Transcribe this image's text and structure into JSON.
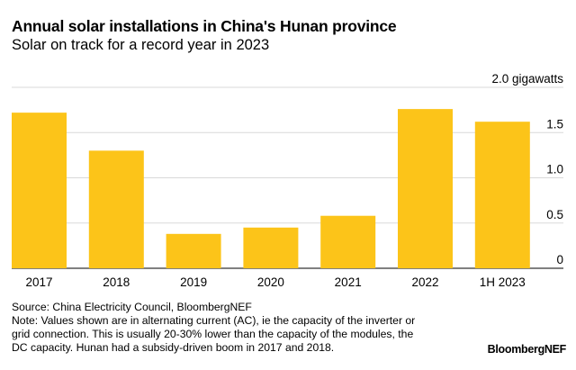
{
  "title": "Annual solar installations in China's Hunan province",
  "subtitle": "Solar on track for a record year in 2023",
  "chart_data": {
    "type": "bar",
    "title": "Annual solar installations in China's Hunan province",
    "subtitle": "Solar on track for a record year in 2023",
    "categories": [
      "2017",
      "2018",
      "2019",
      "2020",
      "2021",
      "2022",
      "1H 2023"
    ],
    "values": [
      1.72,
      1.3,
      0.38,
      0.45,
      0.58,
      1.76,
      1.62
    ],
    "ylabel": "gigawatts",
    "ylim": [
      0,
      2.0
    ],
    "yticks": [
      0,
      0.5,
      1.0,
      1.5,
      2.0
    ],
    "ytick_labels": [
      "0",
      "0.5",
      "1.0",
      "1.5",
      "2.0 gigawatts"
    ],
    "y_axis_position": "right",
    "grid": true,
    "bar_color": "#fcc419"
  },
  "footer": {
    "source": "Source: China Electricity Council, BloombergNEF",
    "note_lines": [
      "Note: Values shown are in alternating current (AC), ie the capacity of the inverter or",
      "grid connection. This is usually 20-30% lower than the capacity of the modules, the",
      "DC capacity. Hunan had a subsidy-driven boom in 2017 and 2018."
    ]
  },
  "brand": "BloombergNEF"
}
